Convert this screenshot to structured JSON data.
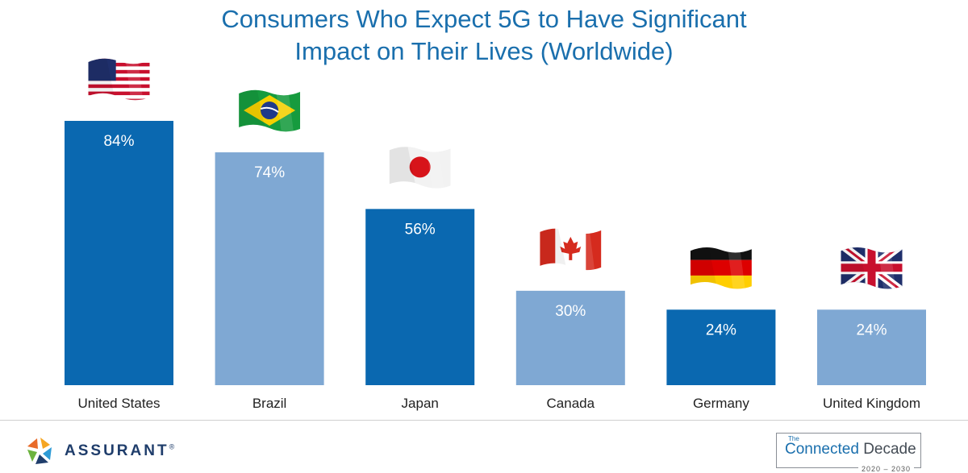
{
  "chart_data": {
    "type": "bar",
    "title_line1": "Consumers Who Expect 5G to Have Significant",
    "title_line2": "Impact on Their Lives (Worldwide)",
    "categories": [
      "United States",
      "Brazil",
      "Japan",
      "Canada",
      "Germany",
      "United Kingdom"
    ],
    "values": [
      84,
      74,
      56,
      30,
      24,
      24
    ],
    "value_labels": [
      "84%",
      "74%",
      "56%",
      "30%",
      "24%",
      "24%"
    ],
    "bar_colors": [
      "#0a68b0",
      "#7fa8d3",
      "#0a68b0",
      "#7fa8d3",
      "#0a68b0",
      "#7fa8d3"
    ],
    "flags": [
      "us-flag",
      "brazil-flag",
      "japan-flag",
      "canada-flag",
      "germany-flag",
      "uk-flag"
    ],
    "xlabel": "",
    "ylabel": "",
    "ylim": [
      0,
      84
    ],
    "grid": false,
    "legend": "none"
  },
  "footer": {
    "logo_text": "ASSURANT",
    "logo_mark": "®",
    "badge_the": "The",
    "badge_connected": "Connected",
    "badge_decade": "Decade",
    "badge_years": "2020 – 2030"
  },
  "colors": {
    "title": "#1a6fad",
    "dark_bar": "#0a68b0",
    "light_bar": "#7fa8d3"
  }
}
